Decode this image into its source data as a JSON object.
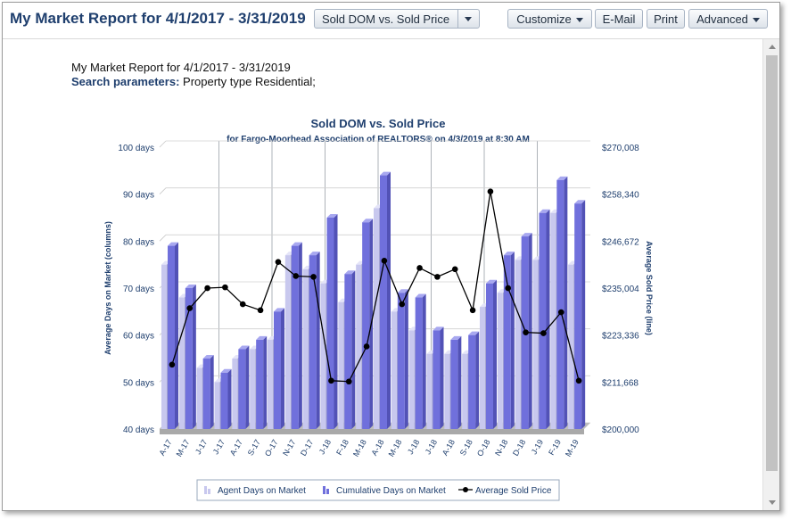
{
  "header": {
    "title": "My Market Report for 4/1/2017 - 3/31/2019",
    "report_select": "Sold DOM vs. Sold Price",
    "buttons": {
      "customize": "Customize",
      "email": "E-Mail",
      "print": "Print",
      "advanced": "Advanced"
    }
  },
  "report": {
    "title": "My Market Report for 4/1/2017 - 3/31/2019",
    "params_label": "Search parameters:",
    "params_value": "Property type Residential;"
  },
  "colors": {
    "title": "#1f3f6e",
    "agent_bar": "#c8c8ee",
    "cumulative_bar": "#7070dc",
    "price_line": "#000000"
  },
  "chart_data": {
    "type": "bar",
    "title": "Sold DOM vs. Sold Price",
    "subtitle": "for Fargo-Moorhead Association of REALTORS® on 4/3/2019 at 8:30 AM",
    "ylabel": "Average Days on Market (columns)",
    "ylabel_right": "Average Sold Price (line)",
    "ylim": [
      40,
      100
    ],
    "ylim_right": [
      200000,
      270008
    ],
    "y_ticks": [
      "40 days",
      "50 days",
      "60 days",
      "70 days",
      "80 days",
      "90 days",
      "100 days"
    ],
    "y_right_ticks": [
      "$200,000",
      "$211,668",
      "$223,336",
      "$235,004",
      "$246,672",
      "$258,340",
      "$270,008"
    ],
    "categories": [
      "A-17",
      "M-17",
      "J-17",
      "J-17",
      "A-17",
      "S-17",
      "O-17",
      "N-17",
      "D-17",
      "J-18",
      "F-18",
      "M-18",
      "A-18",
      "M-18",
      "J-18",
      "J-18",
      "A-18",
      "S-18",
      "O-18",
      "N-18",
      "D-18",
      "J-19",
      "F-19",
      "M-19"
    ],
    "series": [
      {
        "name": "Agent Days on Market",
        "type": "bar",
        "values": [
          75,
          68,
          53,
          50,
          55,
          57,
          59,
          77,
          74,
          71,
          67,
          75,
          87,
          65,
          61,
          56,
          56,
          56,
          66,
          69,
          76,
          76,
          86,
          75
        ]
      },
      {
        "name": "Cumulative Days on Market",
        "type": "bar",
        "values": [
          79,
          70,
          55,
          52,
          57,
          59,
          65,
          79,
          77,
          85,
          73,
          84,
          94,
          69,
          68,
          61,
          59,
          60,
          71,
          77,
          81,
          86,
          93,
          88
        ]
      },
      {
        "name": "Average Sold Price",
        "type": "line",
        "values": [
          216000,
          230000,
          235000,
          235200,
          231000,
          229500,
          241500,
          238000,
          237800,
          212000,
          211800,
          220500,
          241800,
          231000,
          240000,
          237800,
          239700,
          229500,
          259000,
          235000,
          224000,
          223800,
          229000,
          212000
        ]
      }
    ],
    "legend": [
      "Agent Days on Market",
      "Cumulative Days on Market",
      "Average Sold Price"
    ],
    "legend_position": "bottom",
    "grid": true
  }
}
